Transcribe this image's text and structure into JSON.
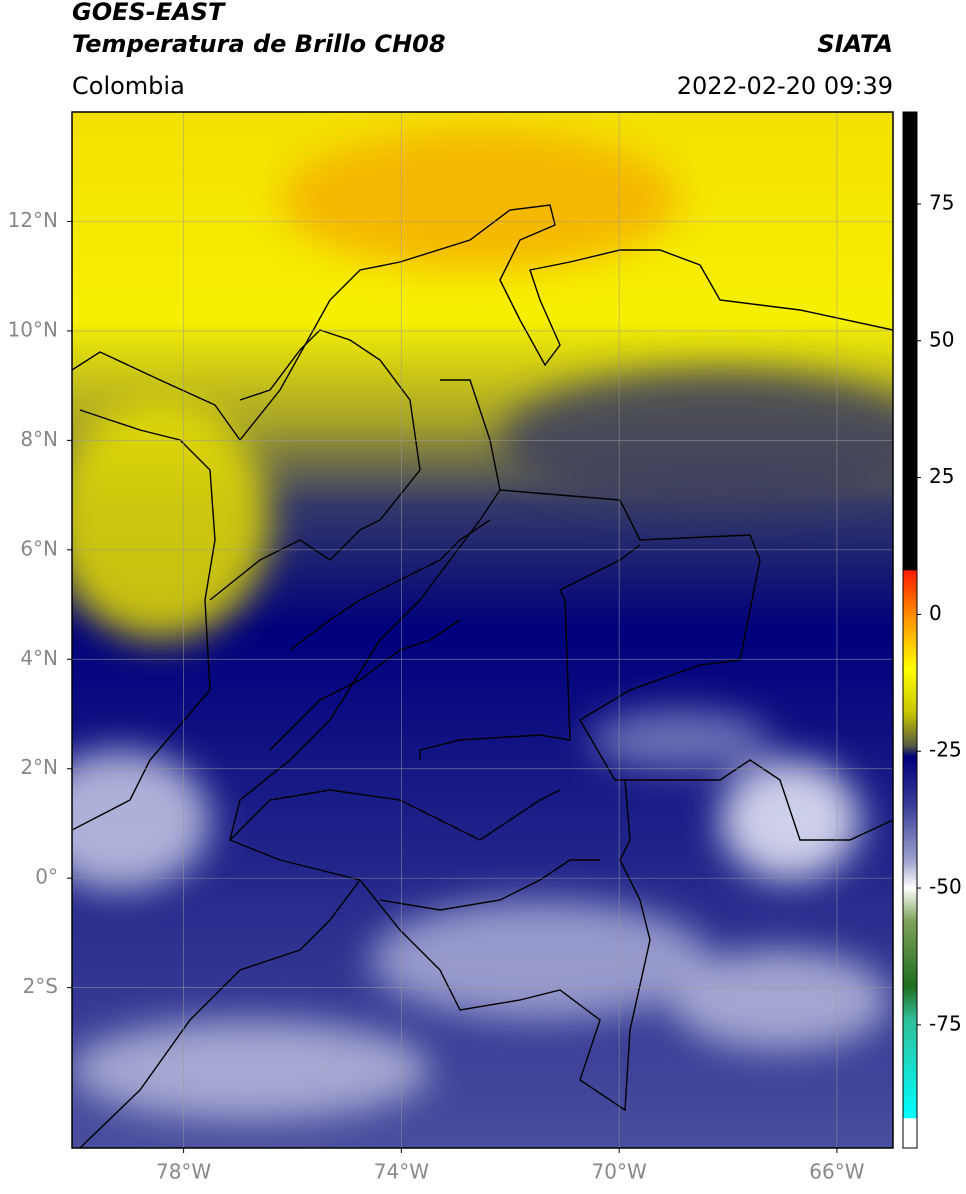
{
  "header": {
    "title": "GOES-EAST",
    "subtitle": "Temperatura de Brillo CH08",
    "source": "SIATA",
    "region": "Colombia",
    "timestamp": "2022-02-20 09:39"
  },
  "map": {
    "lonlim": [
      -80.05,
      -64.97
    ],
    "latlim": [
      -4.93,
      14
    ],
    "xticks": [
      {
        "value": -78,
        "label": "78°W"
      },
      {
        "value": -74,
        "label": "74°W"
      },
      {
        "value": -70,
        "label": "70°W"
      },
      {
        "value": -66,
        "label": "66°W"
      }
    ],
    "yticks": [
      {
        "value": 12,
        "label": "12°N"
      },
      {
        "value": 10,
        "label": "10°N"
      },
      {
        "value": 8,
        "label": "8°N"
      },
      {
        "value": 6,
        "label": "6°N"
      },
      {
        "value": 4,
        "label": "4°N"
      },
      {
        "value": 2,
        "label": "2°N"
      },
      {
        "value": 0,
        "label": "0°"
      },
      {
        "value": -2,
        "label": "2°S"
      }
    ],
    "grid": true
  },
  "colorbar": {
    "lim": [
      -97.5,
      91.8
    ],
    "ticks": [
      75,
      50,
      25,
      0,
      -25,
      -50,
      -75
    ],
    "stops": [
      {
        "value": 91.8,
        "color": "#000000"
      },
      {
        "value": 8.1,
        "color": "#000000"
      },
      {
        "value": 8,
        "color": "#ff1a00"
      },
      {
        "value": 0,
        "color": "#ff8c00"
      },
      {
        "value": -10,
        "color": "#ffff00"
      },
      {
        "value": -18,
        "color": "#c9c400"
      },
      {
        "value": -24,
        "color": "#555a40"
      },
      {
        "value": -26,
        "color": "#00007a"
      },
      {
        "value": -35,
        "color": "#3a3e9a"
      },
      {
        "value": -45,
        "color": "#a0a3cf"
      },
      {
        "value": -50,
        "color": "#ffffff"
      },
      {
        "value": -56,
        "color": "#7ea35a"
      },
      {
        "value": -68,
        "color": "#1e6e1e"
      },
      {
        "value": -74,
        "color": "#2fbf9a"
      },
      {
        "value": -92,
        "color": "#00ffff"
      },
      {
        "value": -92.1,
        "color": "#ffffff"
      },
      {
        "value": -97.5,
        "color": "#ffffff"
      }
    ]
  }
}
